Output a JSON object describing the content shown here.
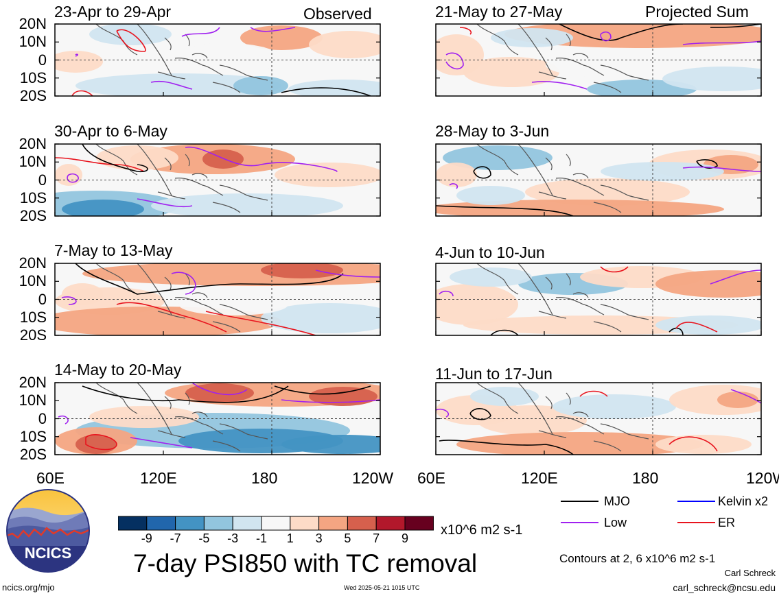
{
  "panels": [
    {
      "id": "p1",
      "title": "23-Apr to 29-Apr",
      "tag": "Observed"
    },
    {
      "id": "p2",
      "title": "30-Apr to 6-May",
      "tag": ""
    },
    {
      "id": "p3",
      "title": "7-May to 13-May",
      "tag": ""
    },
    {
      "id": "p4",
      "title": "14-May to 20-May",
      "tag": ""
    },
    {
      "id": "p5",
      "title": "21-May to 27-May",
      "tag": "Projected Sum"
    },
    {
      "id": "p6",
      "title": "28-May to 3-Jun",
      "tag": ""
    },
    {
      "id": "p7",
      "title": "4-Jun to 10-Jun",
      "tag": ""
    },
    {
      "id": "p8",
      "title": "11-Jun to 17-Jun",
      "tag": ""
    }
  ],
  "lat_labels": [
    "20N",
    "10N",
    "0",
    "10S",
    "20S"
  ],
  "lon_labels": [
    "60E",
    "120E",
    "180",
    "120W"
  ],
  "colorbar": {
    "colors": [
      "#053061",
      "#2166ac",
      "#4393c3",
      "#92c5de",
      "#d1e5f0",
      "#f7f7f7",
      "#fddbc7",
      "#f4a582",
      "#d6604d",
      "#b2182b",
      "#67001f"
    ],
    "labels": [
      "-9",
      "-7",
      "-5",
      "-3",
      "-1",
      "1",
      "3",
      "5",
      "7",
      "9"
    ],
    "units": "x10^6 m2 s-1"
  },
  "main_title": "7-day PSI850 with TC removal",
  "legend": [
    {
      "name": "MJO",
      "color": "#000000"
    },
    {
      "name": "Kelvin x2",
      "color": "#0000ff"
    },
    {
      "name": "Low",
      "color": "#a020f0"
    },
    {
      "name": "ER",
      "color": "#e8141e"
    }
  ],
  "contours_note": "Contours at 2, 6 x10^6 m2 s-1",
  "author": "Carl Schreck",
  "email": "carl_schreck@ncsu.edu",
  "site": "ncics.org/mjo",
  "timestamp": "Wed 2025-05-21 1015 UTC",
  "logo_text": "NCICS"
}
